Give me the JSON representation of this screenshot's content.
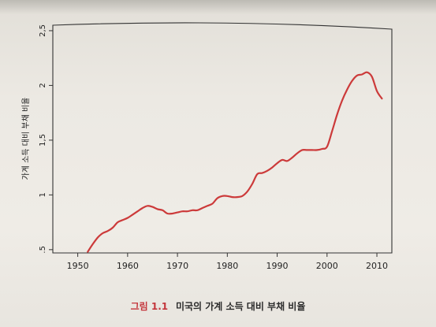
{
  "chart_data": {
    "type": "line",
    "title": "",
    "xlabel": "",
    "ylabel": "가계 소득 대비 부채 비율",
    "xlim": [
      1945,
      2013
    ],
    "ylim": [
      0.47,
      2.55
    ],
    "x_ticks": [
      1950,
      1960,
      1970,
      1980,
      1990,
      2000,
      2010
    ],
    "y_ticks": [
      0.5,
      1,
      1.5,
      2,
      2.5
    ],
    "y_tick_labels": [
      ".5",
      "1",
      "1,5",
      "2",
      "2,5"
    ],
    "grid": false,
    "series_color": "#cc3a3a",
    "series": [
      {
        "x": [
          1952,
          1953,
          1954,
          1955,
          1956,
          1957,
          1958,
          1959,
          1960,
          1961,
          1962,
          1963,
          1964,
          1965,
          1966,
          1967,
          1968,
          1969,
          1970,
          1971,
          1972,
          1973,
          1974,
          1975,
          1976,
          1977,
          1978,
          1979,
          1980,
          1981,
          1982,
          1983,
          1984,
          1985,
          1986,
          1987,
          1988,
          1989,
          1990,
          1991,
          1992,
          1993,
          1994,
          1995,
          1996,
          1997,
          1998,
          1999,
          2000,
          2001,
          2002,
          2003,
          2004,
          2005,
          2006,
          2007,
          2008,
          2009,
          2010,
          2011
        ],
        "y": [
          0.48,
          0.55,
          0.61,
          0.65,
          0.67,
          0.7,
          0.75,
          0.77,
          0.79,
          0.82,
          0.85,
          0.88,
          0.9,
          0.89,
          0.87,
          0.86,
          0.83,
          0.83,
          0.84,
          0.85,
          0.85,
          0.86,
          0.86,
          0.88,
          0.9,
          0.92,
          0.97,
          0.99,
          0.99,
          0.98,
          0.98,
          0.99,
          1.03,
          1.1,
          1.19,
          1.2,
          1.22,
          1.25,
          1.29,
          1.32,
          1.31,
          1.34,
          1.38,
          1.41,
          1.41,
          1.41,
          1.41,
          1.42,
          1.44,
          1.58,
          1.73,
          1.86,
          1.96,
          2.04,
          2.09,
          2.1,
          2.12,
          2.08,
          1.95,
          1.88
        ]
      }
    ]
  },
  "caption": {
    "figure_number": "그림 1.1",
    "title": "미국의 가계 소득 대비 부채 비율"
  }
}
